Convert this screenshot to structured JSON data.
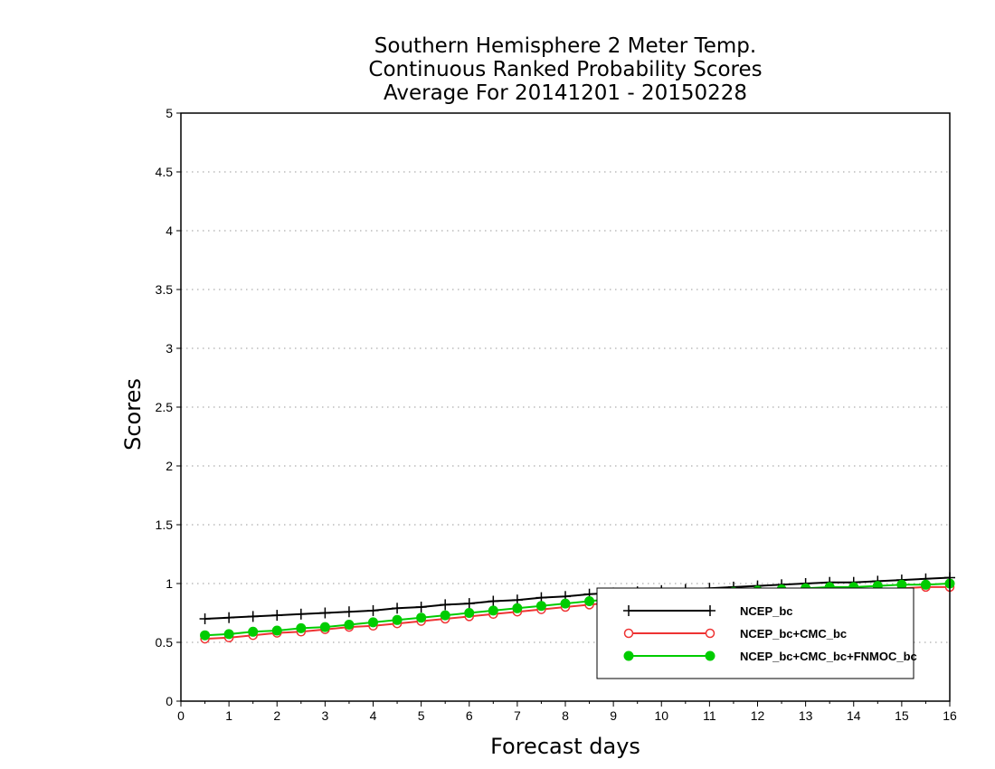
{
  "chart_data": {
    "type": "line",
    "title": [
      "Southern Hemisphere 2 Meter Temp.",
      "Continuous Ranked Probability Scores",
      "Average For 20141201 - 20150228"
    ],
    "xlabel": "Forecast days",
    "ylabel": "Scores",
    "xlim": [
      0,
      16
    ],
    "ylim": [
      0,
      5
    ],
    "xticks": [
      "0",
      "1",
      "2",
      "3",
      "4",
      "5",
      "6",
      "7",
      "8",
      "9",
      "10",
      "11",
      "12",
      "13",
      "14",
      "15",
      "16"
    ],
    "yticks": [
      "0",
      "0.5",
      "1",
      "1.5",
      "2",
      "2.5",
      "3",
      "3.5",
      "4",
      "4.5",
      "5"
    ],
    "grid": "horizontal dotted",
    "legend_position": "bottom-right",
    "x": [
      0.5,
      1.0,
      1.5,
      2.0,
      2.5,
      3.0,
      3.5,
      4.0,
      4.5,
      5.0,
      5.5,
      6.0,
      6.5,
      7.0,
      7.5,
      8.0,
      8.5,
      9.0,
      9.5,
      10.0,
      10.5,
      11.0,
      11.5,
      12.0,
      12.5,
      13.0,
      13.5,
      14.0,
      14.5,
      15.0,
      15.5,
      16.0
    ],
    "series": [
      {
        "name": "NCEP_bc",
        "color": "#000000",
        "marker": "plus",
        "values": [
          0.7,
          0.71,
          0.72,
          0.73,
          0.74,
          0.75,
          0.76,
          0.77,
          0.79,
          0.8,
          0.82,
          0.83,
          0.85,
          0.86,
          0.88,
          0.89,
          0.91,
          0.92,
          0.93,
          0.94,
          0.95,
          0.96,
          0.97,
          0.98,
          0.99,
          1.0,
          1.01,
          1.01,
          1.02,
          1.03,
          1.04,
          1.05
        ]
      },
      {
        "name": "NCEP_bc+CMC_bc",
        "color": "#ee3333",
        "marker": "open-circle",
        "values": [
          0.53,
          0.54,
          0.56,
          0.58,
          0.59,
          0.61,
          0.63,
          0.64,
          0.66,
          0.68,
          0.7,
          0.72,
          0.74,
          0.76,
          0.78,
          0.8,
          0.82,
          0.84,
          0.85,
          0.87,
          0.88,
          0.89,
          0.9,
          0.91,
          0.92,
          0.93,
          0.94,
          0.94,
          0.95,
          0.96,
          0.97,
          0.97
        ]
      },
      {
        "name": "NCEP_bc+CMC_bc+FNMOC_bc",
        "color": "#00cc00",
        "marker": "filled-circle",
        "values": [
          0.56,
          0.57,
          0.59,
          0.6,
          0.62,
          0.63,
          0.65,
          0.67,
          0.69,
          0.71,
          0.73,
          0.75,
          0.77,
          0.79,
          0.81,
          0.83,
          0.85,
          0.87,
          0.88,
          0.9,
          0.91,
          0.92,
          0.93,
          0.94,
          0.95,
          0.96,
          0.97,
          0.97,
          0.98,
          0.99,
          0.99,
          1.0
        ]
      }
    ]
  }
}
